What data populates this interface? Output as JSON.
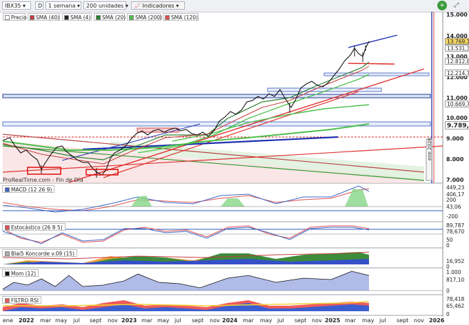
{
  "toolbar": {
    "symbol": "IBX35",
    "timeframe_key": "D",
    "period": "1 semana",
    "units": "200 unidades",
    "indicators_label": "Indicadores"
  },
  "legend": [
    {
      "label": "Precio",
      "color": "#ffffff"
    },
    {
      "label": "SMA (40)",
      "color": "#c43d3d"
    },
    {
      "label": "SMA (4)",
      "color": "#222222"
    },
    {
      "label": "SMA (20)",
      "color": "#2d7d2d"
    },
    {
      "label": "SMA (200)",
      "color": "#4bbf4b"
    },
    {
      "label": "SMA (120)",
      "color": "#e05050"
    }
  ],
  "price_axis": {
    "labels": [
      "15.000",
      "14.000",
      "13.000",
      "12.000",
      "11.000",
      "10.000",
      "9.000",
      "8.000",
      "7.000"
    ],
    "tags": [
      {
        "text": "13.769,10",
        "bg": "#f2d566"
      },
      {
        "text": "13.531,30",
        "bg": "#ffffff"
      },
      {
        "text": "12.812,87",
        "bg": "#ffffff"
      },
      {
        "text": "12.214,72",
        "bg": "#ffffff"
      },
      {
        "text": "10.669,76",
        "bg": "#ffffff"
      },
      {
        "text": "9.789,67",
        "bg": "#ffffff"
      }
    ]
  },
  "watermark": "ProRealTime.com - Fin de Día",
  "vertical_note": "ene 2026",
  "panes": {
    "macd": {
      "title": "MACD (12 26 9)",
      "labels": [
        "449,23",
        "406,17",
        "200",
        "43,06",
        "-200"
      ]
    },
    "stoch": {
      "title": "Estocástico (26 8 5)",
      "labels": [
        "89,787",
        "78,670",
        "50",
        "0"
      ]
    },
    "koncorde": {
      "title": "Blai5 Koncorde v.09 (15)",
      "labels": [
        "16,952",
        "0"
      ]
    },
    "mom": {
      "title": "Mom (12)",
      "labels": [
        "1.000",
        "817,10",
        "0"
      ]
    },
    "rsi": {
      "title": "FILTRO RSI",
      "labels": [
        "78,418",
        "65,462",
        "0"
      ]
    }
  },
  "x_axis": [
    {
      "label": "ene",
      "bold": false
    },
    {
      "label": "2022",
      "bold": true
    },
    {
      "label": "mar",
      "bold": false
    },
    {
      "label": "may",
      "bold": false
    },
    {
      "label": "jul",
      "bold": false
    },
    {
      "label": "sept",
      "bold": false
    },
    {
      "label": "nov",
      "bold": false
    },
    {
      "label": "2023",
      "bold": true
    },
    {
      "label": "mar",
      "bold": false
    },
    {
      "label": "may",
      "bold": false
    },
    {
      "label": "jul",
      "bold": false
    },
    {
      "label": "sept",
      "bold": false
    },
    {
      "label": "nov",
      "bold": false
    },
    {
      "label": "2024",
      "bold": true
    },
    {
      "label": "mar",
      "bold": false
    },
    {
      "label": "may",
      "bold": false
    },
    {
      "label": "jul",
      "bold": false
    },
    {
      "label": "sept",
      "bold": false
    },
    {
      "label": "nov",
      "bold": false
    },
    {
      "label": "2025",
      "bold": true
    },
    {
      "label": "mar",
      "bold": false
    },
    {
      "label": "may",
      "bold": false
    },
    {
      "label": "jul",
      "bold": false
    },
    {
      "label": "sept",
      "bold": false
    },
    {
      "label": "nov",
      "bold": false
    },
    {
      "label": "2026",
      "bold": true
    }
  ]
}
